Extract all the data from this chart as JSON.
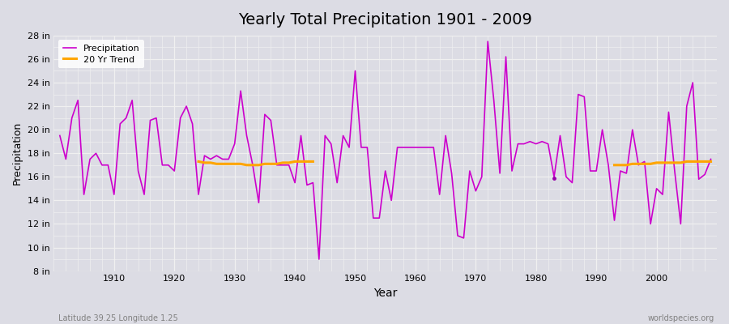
{
  "title": "Yearly Total Precipitation 1901 - 2009",
  "xlabel": "Year",
  "ylabel": "Precipitation",
  "subtitle_left": "Latitude 39.25 Longitude 1.25",
  "subtitle_right": "worldspecies.org",
  "years": [
    1901,
    1902,
    1903,
    1904,
    1905,
    1906,
    1907,
    1908,
    1909,
    1910,
    1911,
    1912,
    1913,
    1914,
    1915,
    1916,
    1917,
    1918,
    1919,
    1920,
    1921,
    1922,
    1923,
    1924,
    1925,
    1926,
    1927,
    1928,
    1929,
    1930,
    1931,
    1932,
    1933,
    1934,
    1935,
    1936,
    1937,
    1938,
    1939,
    1940,
    1941,
    1942,
    1943,
    1944,
    1945,
    1946,
    1947,
    1948,
    1949,
    1950,
    1951,
    1952,
    1953,
    1954,
    1955,
    1956,
    1957,
    1958,
    1959,
    1960,
    1961,
    1962,
    1963,
    1964,
    1965,
    1966,
    1967,
    1968,
    1969,
    1970,
    1971,
    1972,
    1973,
    1974,
    1975,
    1976,
    1977,
    1978,
    1979,
    1980,
    1981,
    1982,
    1983,
    1984,
    1985,
    1986,
    1987,
    1988,
    1989,
    1990,
    1991,
    1992,
    1993,
    1994,
    1995,
    1996,
    1997,
    1998,
    1999,
    2000,
    2001,
    2002,
    2003,
    2004,
    2005,
    2006,
    2007,
    2008,
    2009
  ],
  "precip": [
    19.5,
    17.5,
    21.0,
    22.5,
    14.5,
    17.5,
    18.0,
    17.0,
    17.0,
    14.5,
    20.5,
    21.0,
    22.5,
    16.5,
    14.5,
    20.8,
    21.0,
    17.0,
    17.0,
    16.5,
    21.0,
    22.0,
    20.5,
    14.5,
    17.8,
    17.5,
    17.8,
    17.5,
    17.5,
    18.8,
    23.3,
    19.5,
    17.0,
    13.8,
    21.3,
    20.8,
    17.0,
    17.0,
    17.0,
    15.5,
    19.5,
    15.3,
    15.5,
    9.0,
    19.5,
    18.8,
    15.5,
    19.5,
    18.5,
    25.0,
    18.5,
    18.5,
    12.5,
    12.5,
    16.5,
    14.0,
    18.5,
    18.5,
    18.5,
    18.5,
    18.5,
    18.5,
    18.5,
    14.5,
    19.5,
    16.3,
    11.0,
    10.8,
    16.5,
    14.8,
    16.0,
    27.5,
    22.5,
    16.3,
    26.2,
    16.5,
    18.8,
    18.8,
    19.0,
    18.8,
    19.0,
    18.8,
    16.0,
    19.5,
    16.0,
    15.5,
    23.0,
    22.8,
    16.5,
    16.5,
    20.0,
    17.0,
    12.3,
    16.5,
    16.3,
    20.0,
    17.0,
    17.3,
    12.0,
    15.0,
    14.5,
    21.5,
    16.5,
    12.0,
    22.0,
    24.0,
    15.8,
    16.2,
    17.5
  ],
  "trend_seg1_years": [
    1924,
    1925,
    1926,
    1927,
    1928,
    1929,
    1930,
    1931,
    1932,
    1933,
    1934,
    1935,
    1936,
    1937,
    1938,
    1939,
    1940,
    1941,
    1942,
    1943
  ],
  "trend_seg1_vals": [
    17.3,
    17.2,
    17.2,
    17.1,
    17.1,
    17.1,
    17.1,
    17.1,
    17.0,
    17.0,
    17.0,
    17.1,
    17.1,
    17.1,
    17.2,
    17.2,
    17.3,
    17.3,
    17.3,
    17.3
  ],
  "trend_seg2_years": [
    1993,
    1994,
    1995,
    1996,
    1997,
    1998,
    1999,
    2000,
    2001,
    2002,
    2003,
    2004,
    2005,
    2006,
    2007,
    2008,
    2009
  ],
  "trend_seg2_vals": [
    17.0,
    17.0,
    17.0,
    17.1,
    17.1,
    17.1,
    17.1,
    17.2,
    17.2,
    17.2,
    17.2,
    17.2,
    17.3,
    17.3,
    17.3,
    17.3,
    17.3
  ],
  "dot_year": 1983,
  "dot_value": 15.9,
  "precip_color": "#cc00cc",
  "trend_color": "#ffa500",
  "dot_color": "#9900aa",
  "bg_color": "#dcdce4",
  "plot_bg_color": "#dcdce4",
  "grid_color": "#f0f0f0",
  "ylim_min": 8,
  "ylim_max": 28,
  "yticks": [
    8,
    10,
    12,
    14,
    16,
    18,
    20,
    22,
    24,
    26,
    28
  ],
  "xticks": [
    1910,
    1920,
    1930,
    1940,
    1950,
    1960,
    1970,
    1980,
    1990,
    2000
  ]
}
